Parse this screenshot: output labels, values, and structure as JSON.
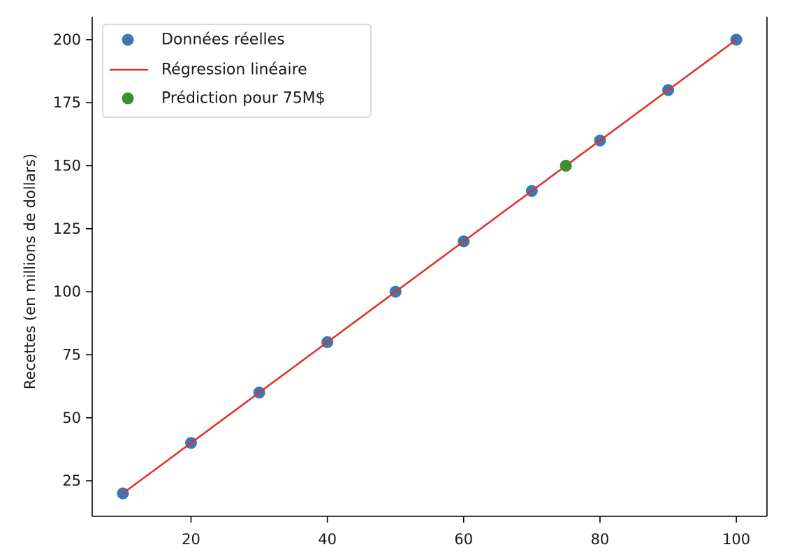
{
  "chart_data": {
    "type": "scatter",
    "title": "",
    "xlabel": "",
    "ylabel": "Recettes (en millions de dollars)",
    "xlim": [
      5.5,
      104.5
    ],
    "ylim": [
      10.9,
      209.1
    ],
    "xticks": [
      20,
      40,
      60,
      80,
      100
    ],
    "yticks": [
      25,
      50,
      75,
      100,
      125,
      150,
      175,
      200
    ],
    "grid": false,
    "legend_position": "top-left",
    "series": [
      {
        "name": "Données réelles",
        "kind": "scatter",
        "color": "#3a78b5",
        "x": [
          10,
          20,
          30,
          40,
          50,
          60,
          70,
          80,
          90,
          100
        ],
        "y": [
          20,
          40,
          60,
          80,
          100,
          120,
          140,
          160,
          180,
          200
        ]
      },
      {
        "name": "Régression linéaire",
        "kind": "line",
        "color": "#e0332a",
        "x": [
          10,
          100
        ],
        "y": [
          20,
          200
        ]
      },
      {
        "name": "Prédiction pour 75M$",
        "kind": "scatter",
        "color": "#3c8f2e",
        "x": [
          75
        ],
        "y": [
          150
        ]
      }
    ]
  }
}
